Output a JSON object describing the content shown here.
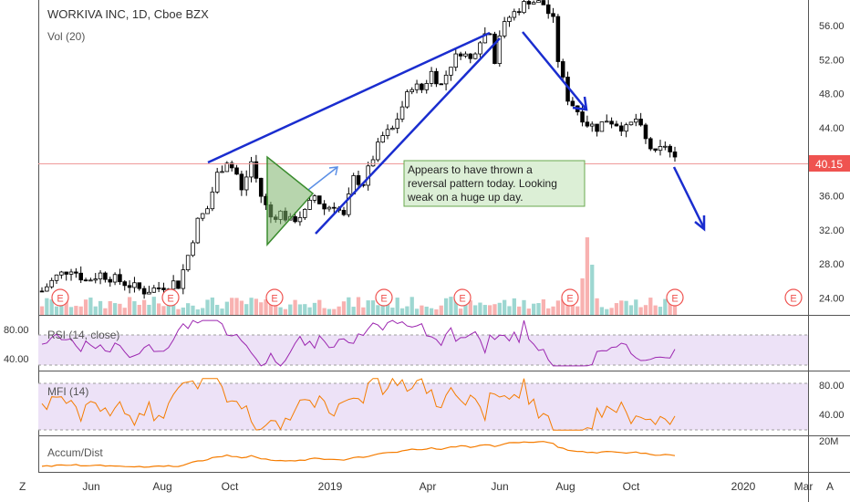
{
  "header": {
    "symbol_line": "WORKIVA INC, 1D, Cboe BZX",
    "vol_label": "Vol (20)"
  },
  "panes": {
    "rsi_label": "RSI (14, close)",
    "mfi_label": "MFI (14)",
    "ad_label": "Accum/Dist"
  },
  "annotation": {
    "lines": [
      "Appears to have thrown a",
      "reversal pattern today.  Looking",
      "weak on a huge up day."
    ]
  },
  "earnings_marker": "E",
  "bottom_bar": {
    "left_button": "Z",
    "right_button": "A"
  },
  "colors": {
    "up": "#26a69a",
    "down": "#ef5350",
    "candle_body": "#000000",
    "trendline": "#1a2dcf",
    "pattern_fill": "#7bb36a",
    "rsi": "#9c27b0",
    "mfi": "#f57c00",
    "ad": "#f57c00",
    "band_fill": "#e9ddf5",
    "price_line": "#ef5350",
    "price_badge": "#ef5350"
  },
  "chart_data": [
    {
      "type": "candlestick",
      "title": "WORKIVA INC, 1D, Cboe BZX",
      "x_ticks": [
        "Jun",
        "Aug",
        "Oct",
        "2019",
        "Apr",
        "Jun",
        "Aug",
        "Oct",
        "2020",
        "Mar"
      ],
      "y_ticks": [
        "24.00",
        "28.00",
        "32.00",
        "36.00",
        "40.00",
        "44.00",
        "48.00",
        "52.00",
        "56.00"
      ],
      "ylim": [
        22,
        59
      ],
      "last_price": "40.15",
      "close_path": [
        [
          0,
          24.8
        ],
        [
          3,
          26.5
        ],
        [
          6,
          27.5
        ],
        [
          9,
          26.0
        ],
        [
          12,
          26.8
        ],
        [
          15,
          26.2
        ],
        [
          18,
          25.5
        ],
        [
          21,
          24.8
        ],
        [
          24,
          25.2
        ],
        [
          27,
          25.8
        ],
        [
          28,
          25.5
        ],
        [
          30,
          29.0
        ],
        [
          32,
          33.0
        ],
        [
          34,
          34.5
        ],
        [
          36,
          38.5
        ],
        [
          38,
          40.2
        ],
        [
          40,
          38.5
        ],
        [
          41,
          36.5
        ],
        [
          43,
          40.0
        ],
        [
          45,
          36.0
        ],
        [
          47,
          33.5
        ],
        [
          49,
          34.0
        ],
        [
          51,
          33.0
        ],
        [
          54,
          34.0
        ],
        [
          56,
          36.0
        ],
        [
          58,
          34.5
        ],
        [
          60,
          35.0
        ],
        [
          62,
          33.5
        ],
        [
          64,
          38.0
        ],
        [
          66,
          37.5
        ],
        [
          68,
          40.5
        ],
        [
          70,
          43.0
        ],
        [
          72,
          43.8
        ],
        [
          74,
          46.5
        ],
        [
          76,
          49.0
        ],
        [
          78,
          48.5
        ],
        [
          80,
          50.5
        ],
        [
          82,
          49.0
        ],
        [
          84,
          51.5
        ],
        [
          86,
          53.0
        ],
        [
          88,
          52.0
        ],
        [
          90,
          54.5
        ],
        [
          92,
          55.5
        ],
        [
          93,
          52.0
        ],
        [
          94,
          55.0
        ],
        [
          96,
          57.0
        ],
        [
          98,
          58.0
        ],
        [
          100,
          59.0
        ],
        [
          103,
          58.5
        ],
        [
          105,
          56.5
        ],
        [
          106,
          52.0
        ],
        [
          107,
          49.5
        ],
        [
          108,
          47.5
        ],
        [
          110,
          46.0
        ],
        [
          112,
          44.5
        ],
        [
          114,
          44.0
        ],
        [
          116,
          45.0
        ],
        [
          118,
          44.5
        ],
        [
          120,
          43.8
        ],
        [
          122,
          45.0
        ],
        [
          124,
          42.5
        ],
        [
          126,
          40.8
        ],
        [
          128,
          42.0
        ],
        [
          130,
          40.15
        ]
      ],
      "volume_spike": "mid-August 2019 earnings",
      "earnings_events": [
        "May",
        "Aug",
        "Nov",
        "Feb",
        "May",
        "Aug",
        "Nov",
        "Feb"
      ]
    },
    {
      "type": "line",
      "title": "RSI (14, close)",
      "y_ticks": [
        "40.00",
        "80.00"
      ],
      "ylim": [
        20,
        90
      ],
      "band": [
        30,
        70
      ]
    },
    {
      "type": "line",
      "title": "MFI (14)",
      "y_ticks": [
        "40.00",
        "80.00"
      ],
      "ylim": [
        20,
        90
      ],
      "band": [
        20,
        80
      ]
    },
    {
      "type": "area",
      "title": "Accum/Dist",
      "y_ticks": [
        "20M"
      ]
    }
  ]
}
